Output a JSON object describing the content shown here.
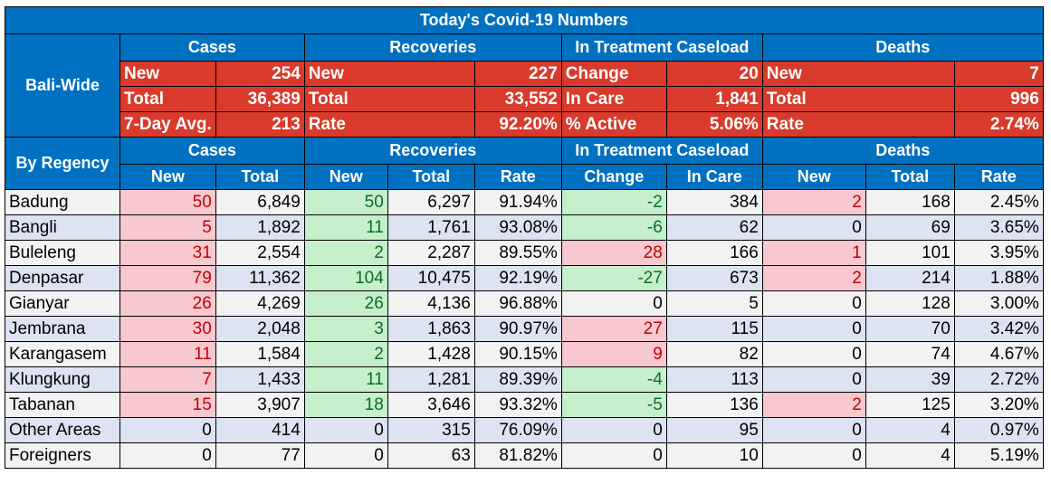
{
  "title": "Today's Covid-19 Numbers",
  "groups": [
    "Cases",
    "Recoveries",
    "In Treatment Caseload",
    "Deaths"
  ],
  "bali_wide": {
    "label": "Bali-Wide",
    "rows": [
      [
        "New",
        "254",
        "New",
        "227",
        "Change",
        "20",
        "New",
        "7"
      ],
      [
        "Total",
        "36,389",
        "Total",
        "33,552",
        "In Care",
        "1,841",
        "Total",
        "996"
      ],
      [
        "7-Day Avg.",
        "213",
        "Rate",
        "92.20%",
        "% Active",
        "5.06%",
        "Rate",
        "2.74%"
      ]
    ]
  },
  "by_regency": {
    "label": "By Regency",
    "columns": [
      "New",
      "Total",
      "New",
      "Total",
      "Rate",
      "Change",
      "In Care",
      "New",
      "Total",
      "Rate"
    ],
    "rows": [
      {
        "name": "Badung",
        "cells": [
          "50",
          "6,849",
          "50",
          "6,297",
          "91.94%",
          "-2",
          "384",
          "2",
          "168",
          "2.45%"
        ]
      },
      {
        "name": "Bangli",
        "cells": [
          "5",
          "1,892",
          "11",
          "1,761",
          "93.08%",
          "-6",
          "62",
          "0",
          "69",
          "3.65%"
        ]
      },
      {
        "name": "Buleleng",
        "cells": [
          "31",
          "2,554",
          "2",
          "2,287",
          "89.55%",
          "28",
          "166",
          "1",
          "101",
          "3.95%"
        ]
      },
      {
        "name": "Denpasar",
        "cells": [
          "79",
          "11,362",
          "104",
          "10,475",
          "92.19%",
          "-27",
          "673",
          "2",
          "214",
          "1.88%"
        ]
      },
      {
        "name": "Gianyar",
        "cells": [
          "26",
          "4,269",
          "26",
          "4,136",
          "96.88%",
          "0",
          "5",
          "0",
          "128",
          "3.00%"
        ]
      },
      {
        "name": "Jembrana",
        "cells": [
          "30",
          "2,048",
          "3",
          "1,863",
          "90.97%",
          "27",
          "115",
          "0",
          "70",
          "3.42%"
        ]
      },
      {
        "name": "Karangasem",
        "cells": [
          "11",
          "1,584",
          "2",
          "1,428",
          "90.15%",
          "9",
          "82",
          "0",
          "74",
          "4.67%"
        ]
      },
      {
        "name": "Klungkung",
        "cells": [
          "7",
          "1,433",
          "11",
          "1,281",
          "89.39%",
          "-4",
          "113",
          "0",
          "39",
          "2.72%"
        ]
      },
      {
        "name": "Tabanan",
        "cells": [
          "15",
          "3,907",
          "18",
          "3,646",
          "93.32%",
          "-5",
          "136",
          "2",
          "125",
          "3.20%"
        ]
      },
      {
        "name": "Other Areas",
        "cells": [
          "0",
          "414",
          "0",
          "315",
          "76.09%",
          "0",
          "95",
          "0",
          "4",
          "0.97%"
        ]
      },
      {
        "name": "Foreigners",
        "cells": [
          "0",
          "77",
          "0",
          "63",
          "81.82%",
          "0",
          "10",
          "0",
          "4",
          "5.19%"
        ]
      }
    ]
  }
}
